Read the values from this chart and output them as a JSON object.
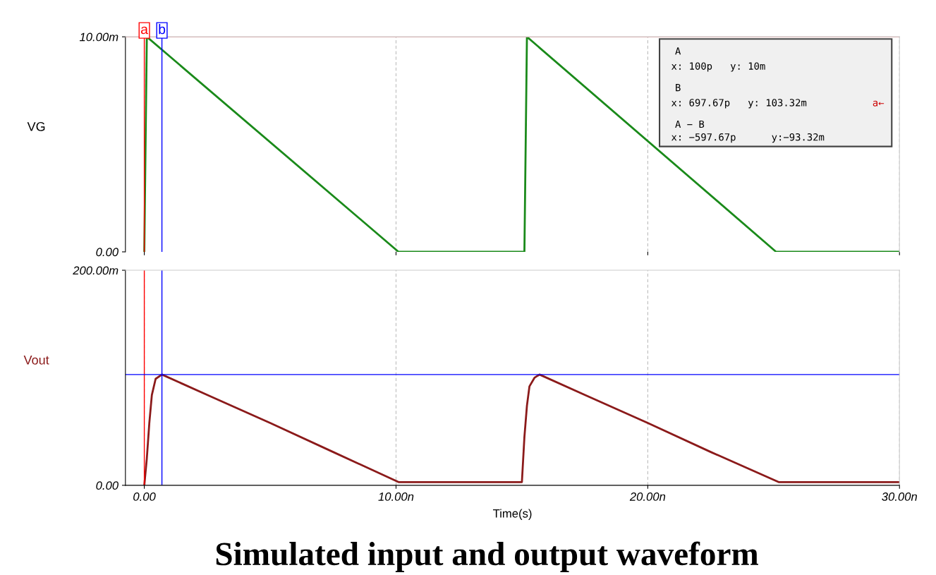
{
  "chart_data": [
    {
      "type": "line",
      "ylabel": "VG",
      "x": [
        0,
        0.1,
        10.1,
        15.1,
        15.2,
        25.1,
        30
      ],
      "series": [
        {
          "color": "#1a8a1a",
          "values": [
            0,
            10,
            0,
            0,
            10,
            0,
            0
          ]
        }
      ],
      "xlim": [
        -0.75,
        30
      ],
      "xticks": [
        0,
        10,
        20,
        30
      ],
      "ylim": [
        0,
        10
      ],
      "yticks": [
        {
          "value": 0,
          "label": "0.00"
        },
        {
          "value": 10,
          "label": "10.00m"
        }
      ],
      "tick_labels": "y",
      "grid": "x",
      "ref_lines": [
        {
          "axis": "x",
          "value": 0,
          "label": "a",
          "color": "#ff0000"
        },
        {
          "axis": "x",
          "value": 0.7,
          "label": "b",
          "color": "#0000ff"
        },
        {
          "axis": "y",
          "value": 10,
          "color": "#ff0000"
        }
      ],
      "annotations": [
        "A",
        "x: 100p   y: 10m",
        "B",
        "x: 697.67p   y: 103.32m",
        "a←",
        "A − B",
        "x: −597.67p      y:−93.32m"
      ]
    },
    {
      "type": "line",
      "title": "Simulated input and output waveform",
      "xlabel": "Time(s)",
      "ylabel": "Vout",
      "x": [
        0,
        0.1,
        0.2,
        0.3,
        0.45,
        0.7,
        2.5,
        5,
        7.5,
        10.1,
        15,
        15.1,
        15.2,
        15.3,
        15.5,
        15.7,
        17.5,
        20,
        22.5,
        25.2,
        30
      ],
      "series": [
        {
          "color": "#8b1a1a",
          "values": [
            0,
            25,
            58,
            84,
            99,
            103,
            84,
            58,
            31,
            3,
            3,
            45,
            74,
            92,
            100,
            103,
            84,
            58,
            31,
            3,
            3
          ]
        }
      ],
      "xlim": [
        -0.75,
        30
      ],
      "xticks": [
        {
          "value": 0,
          "label": "0.00"
        },
        {
          "value": 10,
          "label": "10.00n"
        },
        {
          "value": 20,
          "label": "20.00n"
        },
        {
          "value": 30,
          "label": "30.00n"
        }
      ],
      "ylim": [
        0,
        200
      ],
      "yticks": [
        {
          "value": 0,
          "label": "0.00"
        },
        {
          "value": 200,
          "label": "200.00m"
        }
      ],
      "grid": "x",
      "ref_lines": [
        {
          "axis": "x",
          "value": 0,
          "color": "#ff0000"
        },
        {
          "axis": "x",
          "value": 0.7,
          "color": "#0000ff"
        },
        {
          "axis": "y",
          "value": 103,
          "color": "#0000ff"
        }
      ]
    }
  ]
}
